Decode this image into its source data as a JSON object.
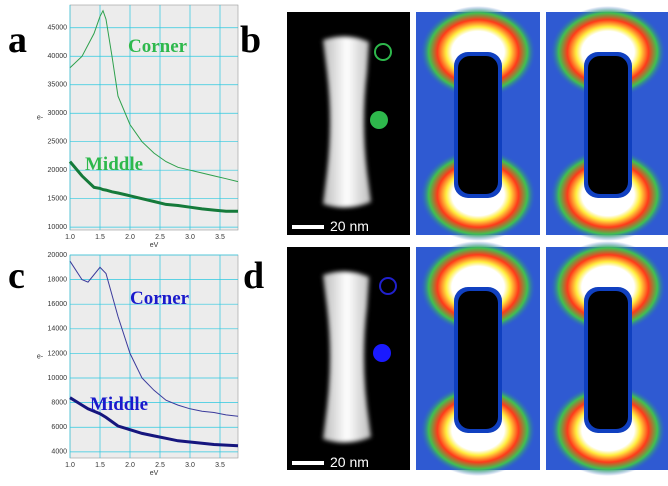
{
  "panel_labels": [
    "a",
    "b",
    "c",
    "d"
  ],
  "scale_bars": [
    "20 nm",
    "20 nm"
  ],
  "chart_data": [
    {
      "type": "line",
      "xlabel": "eV",
      "ylabel": "e-",
      "xlim": [
        1.0,
        3.8
      ],
      "ylim": [
        9500,
        49000
      ],
      "xticks": [
        {
          "value": 1,
          "label": "1.0"
        },
        {
          "value": 1.5,
          "label": "1.5"
        },
        {
          "value": 2,
          "label": "2.0"
        },
        {
          "value": 2.5,
          "label": "2.5"
        },
        {
          "value": 3,
          "label": "3.0"
        },
        {
          "value": 3.5,
          "label": "3.5"
        }
      ],
      "yticks": [
        10000,
        15000,
        20000,
        25000,
        30000,
        35000,
        40000,
        45000
      ],
      "grid": true,
      "x": [
        1.0,
        1.2,
        1.4,
        1.5,
        1.55,
        1.6,
        1.7,
        1.8,
        2.0,
        2.2,
        2.4,
        2.6,
        2.8,
        3.0,
        3.2,
        3.4,
        3.6,
        3.8
      ],
      "series": [
        {
          "name": "Corner",
          "color": "#2ea04c",
          "values": [
            38000,
            40000,
            44000,
            47000,
            48000,
            46500,
            40000,
            33000,
            28000,
            25000,
            23000,
            21500,
            20500,
            20000,
            19500,
            19000,
            18500,
            18000
          ]
        },
        {
          "name": "Middle",
          "color": "#157a3a",
          "values": [
            21500,
            19000,
            17000,
            16800,
            16600,
            16500,
            16200,
            16000,
            15500,
            15000,
            14500,
            14000,
            13800,
            13500,
            13200,
            13000,
            12800,
            12800
          ]
        }
      ]
    },
    {
      "type": "line",
      "xlabel": "eV",
      "ylabel": "e-",
      "xlim": [
        1.0,
        3.8
      ],
      "ylim": [
        3500,
        20000
      ],
      "xticks": [
        {
          "value": 1,
          "label": "1.0"
        },
        {
          "value": 1.5,
          "label": "1.5"
        },
        {
          "value": 2,
          "label": "2.0"
        },
        {
          "value": 2.5,
          "label": "2.5"
        },
        {
          "value": 3,
          "label": "3.0"
        },
        {
          "value": 3.5,
          "label": "3.5"
        }
      ],
      "yticks": [
        4000,
        6000,
        8000,
        10000,
        12000,
        14000,
        16000,
        18000,
        20000
      ],
      "grid": true,
      "x": [
        1.0,
        1.2,
        1.3,
        1.5,
        1.6,
        1.8,
        2.0,
        2.2,
        2.4,
        2.6,
        2.8,
        3.0,
        3.2,
        3.4,
        3.6,
        3.8
      ],
      "series": [
        {
          "name": "Corner",
          "color": "#3b3b9c",
          "values": [
            19500,
            18000,
            17800,
            19000,
            18500,
            15000,
            12000,
            10000,
            9000,
            8200,
            7800,
            7500,
            7300,
            7200,
            7000,
            6900
          ]
        },
        {
          "name": "Middle",
          "color": "#16167e",
          "values": [
            8400,
            7800,
            7500,
            7100,
            6800,
            6100,
            5800,
            5500,
            5300,
            5100,
            4900,
            4800,
            4700,
            4600,
            4550,
            4500
          ]
        }
      ]
    }
  ]
}
